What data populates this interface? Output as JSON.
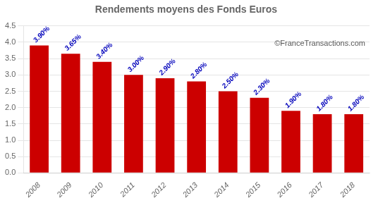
{
  "chart_data": {
    "type": "bar",
    "title": "Rendements moyens des Fonds Euros",
    "categories": [
      "2008",
      "2009",
      "2010",
      "2011",
      "2012",
      "2013",
      "2014",
      "2015",
      "2016",
      "2017",
      "2018"
    ],
    "values": [
      3.9,
      3.65,
      3.4,
      3.0,
      2.9,
      2.8,
      2.5,
      2.3,
      1.9,
      1.8,
      1.8
    ],
    "value_labels": [
      "3.90%",
      "3.65%",
      "3.40%",
      "3.00%",
      "2.90%",
      "2.80%",
      "2.50%",
      "2.30%",
      "1.90%",
      "1.80%",
      "1.80%"
    ],
    "data_labels": true,
    "color": "#cc0000",
    "ylim": [
      0,
      4.5
    ],
    "yticks": [
      {
        "value": 0,
        "label": "0.0"
      },
      0.5,
      {
        "value": 1,
        "label": "1.0"
      },
      1.5,
      {
        "value": 2,
        "label": "2.0"
      },
      2.5,
      {
        "value": 3,
        "label": "3.0"
      },
      3.5,
      {
        "value": 4,
        "label": "4.0"
      },
      4.5
    ],
    "grid": true,
    "annotation": "©FranceTransactions.com"
  }
}
